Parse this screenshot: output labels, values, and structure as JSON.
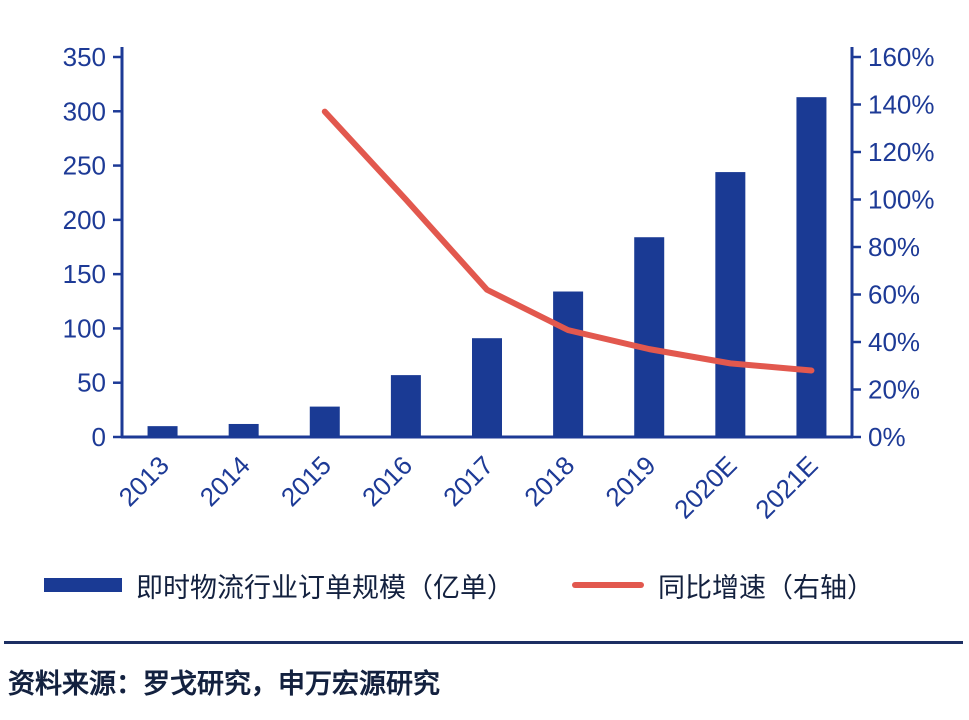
{
  "chart_data": {
    "type": "bar+line",
    "title": "",
    "categories": [
      "2013",
      "2014",
      "2015",
      "2016",
      "2017",
      "2018",
      "2019",
      "2020E",
      "2021E"
    ],
    "series": [
      {
        "name": "即时物流行业订单规模（亿单）",
        "type": "bar",
        "axis": "left",
        "color": "#1a3a94",
        "values": [
          10,
          12,
          28,
          57,
          91,
          134,
          184,
          244,
          313
        ]
      },
      {
        "name": "同比增速（右轴）",
        "type": "line",
        "axis": "right",
        "color": "#e2584e",
        "values": [
          null,
          null,
          137,
          100,
          62,
          45,
          37,
          31,
          28
        ]
      }
    ],
    "left_axis": {
      "min": 0,
      "max": 350,
      "step": 50,
      "tick_labels": [
        "0",
        "50",
        "100",
        "150",
        "200",
        "250",
        "300",
        "350"
      ]
    },
    "right_axis": {
      "min": 0,
      "max": 160,
      "step": 20,
      "unit": "%",
      "tick_labels": [
        "0%",
        "20%",
        "40%",
        "60%",
        "80%",
        "100%",
        "120%",
        "140%",
        "160%"
      ]
    },
    "grid": false,
    "legend_position": "bottom"
  },
  "legend": {
    "items": [
      {
        "label": "即时物流行业订单规模（亿单）",
        "swatch": "bar",
        "color": "#1a3a94"
      },
      {
        "label": "同比增速（右轴）",
        "swatch": "line",
        "color": "#e2584e"
      }
    ]
  },
  "footer": {
    "source_label": "资料来源：罗戈研究，申万宏源研究"
  },
  "colors": {
    "bar": "#1a3a94",
    "line": "#e2584e",
    "axis": "#1d3a96",
    "text": "#13213f",
    "divider": "#1c2f63"
  }
}
